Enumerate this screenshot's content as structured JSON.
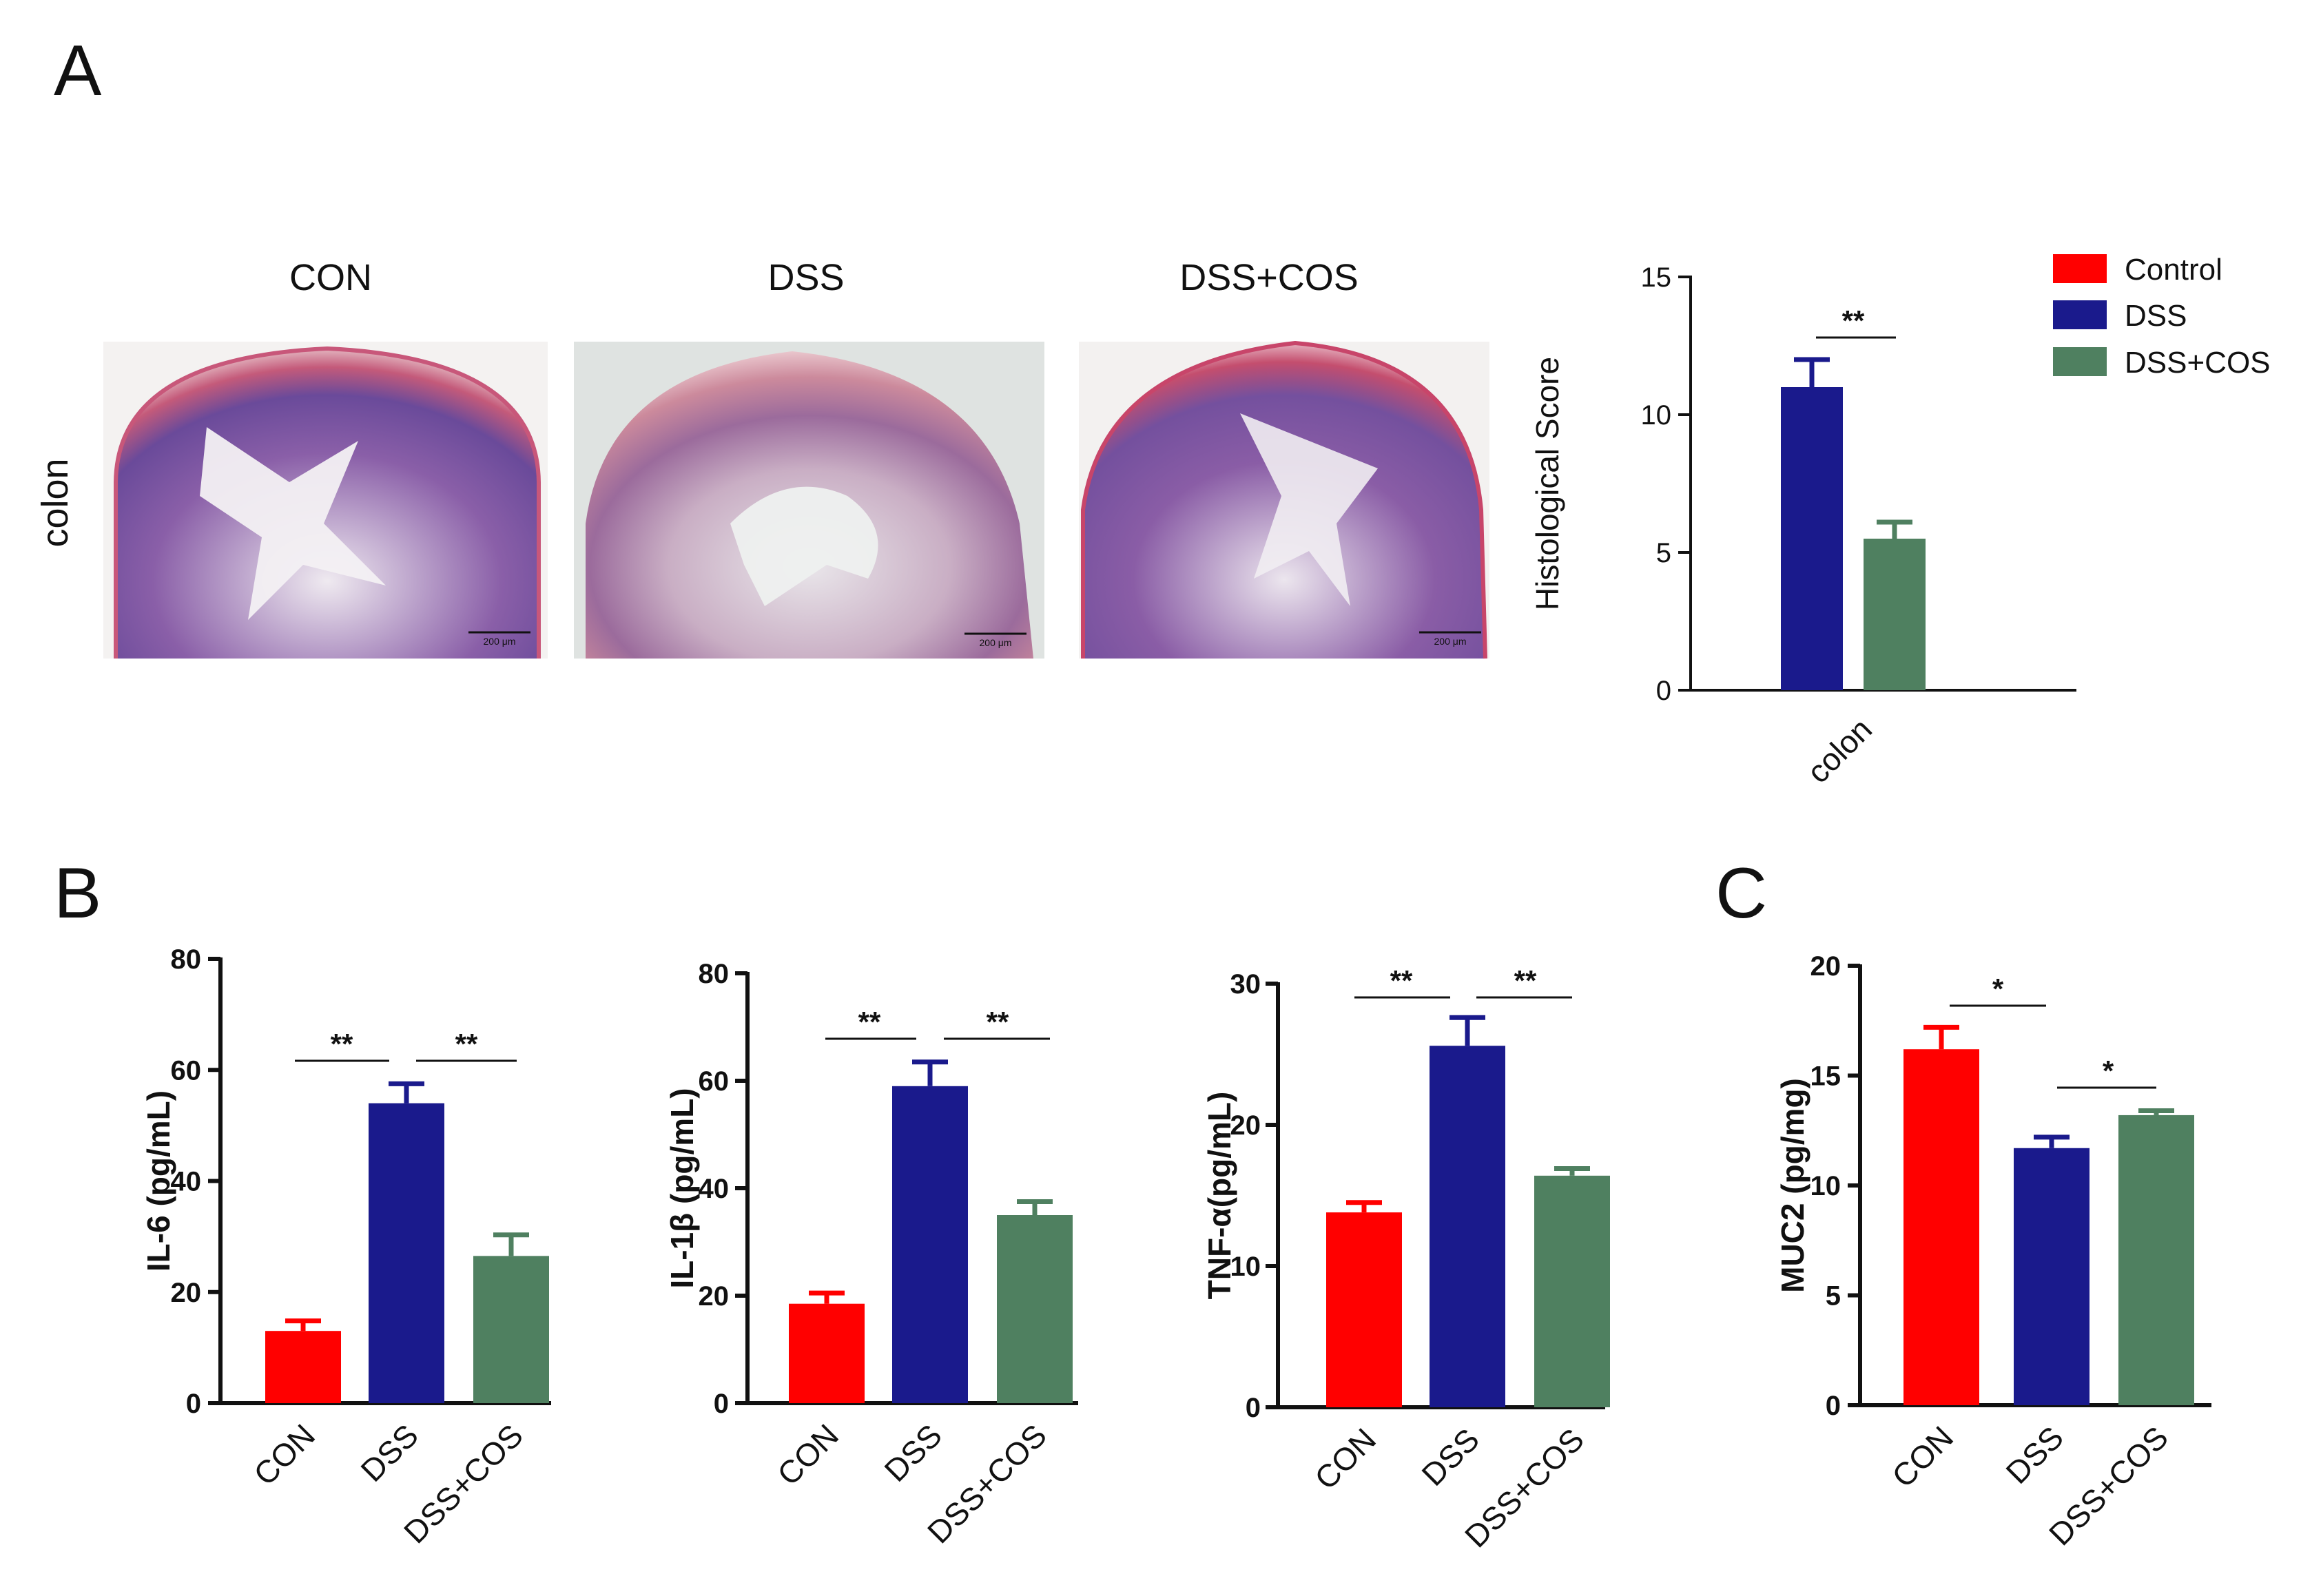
{
  "panels": {
    "A": "A",
    "B": "B",
    "C": "C"
  },
  "histology": {
    "row_label": "colon",
    "titles": [
      "CON",
      "DSS",
      "DSS+COS"
    ],
    "scale_bar": "200 μm"
  },
  "legend": [
    {
      "label": "Control",
      "color": "#ff0000"
    },
    {
      "label": "DSS",
      "color": "#1a1a8c"
    },
    {
      "label": "DSS+COS",
      "color": "#4f8060"
    }
  ],
  "colors": {
    "control": "#ff0000",
    "dss": "#1a1a8c",
    "dss_cos": "#4f8060",
    "axis": "#111111"
  },
  "chart_data": [
    {
      "id": "histo",
      "type": "bar",
      "panel": "A",
      "ylabel": "Histological Score",
      "ylim": [
        0,
        15
      ],
      "yticks": [
        0,
        5,
        10,
        15
      ],
      "categories": [
        "colon"
      ],
      "series": [
        {
          "name": "DSS",
          "values": [
            11.0
          ],
          "errors": [
            1.0
          ]
        },
        {
          "name": "DSS+COS",
          "values": [
            5.5
          ],
          "errors": [
            0.6
          ]
        }
      ],
      "significance": [
        {
          "between": [
            0,
            1
          ],
          "label": "**"
        }
      ]
    },
    {
      "id": "il6",
      "type": "bar",
      "panel": "B",
      "ylabel": "IL-6 (pg/mL)",
      "ylim": [
        0,
        80
      ],
      "yticks": [
        0,
        20,
        40,
        60,
        80
      ],
      "categories": [
        "CON",
        "DSS",
        "DSS+COS"
      ],
      "values": [
        13,
        54,
        26.5
      ],
      "errors": [
        1.8,
        3.5,
        3.8
      ],
      "significance": [
        {
          "between": [
            0,
            1
          ],
          "label": "**"
        },
        {
          "between": [
            1,
            2
          ],
          "label": "**"
        }
      ]
    },
    {
      "id": "il1b",
      "type": "bar",
      "panel": "B",
      "ylabel": "IL-1β (pg/mL)",
      "ylim": [
        0,
        80
      ],
      "yticks": [
        0,
        20,
        40,
        60,
        80
      ],
      "categories": [
        "CON",
        "DSS",
        "DSS+COS"
      ],
      "values": [
        18.5,
        59,
        35
      ],
      "errors": [
        2,
        4.5,
        2.5
      ],
      "significance": [
        {
          "between": [
            0,
            1
          ],
          "label": "**"
        },
        {
          "between": [
            1,
            2
          ],
          "label": "**"
        }
      ]
    },
    {
      "id": "tnf",
      "type": "bar",
      "panel": "B",
      "ylabel": "TNF-α(pg/mL)",
      "ylim": [
        0,
        30
      ],
      "yticks": [
        0,
        10,
        20,
        30
      ],
      "categories": [
        "CON",
        "DSS",
        "DSS+COS"
      ],
      "values": [
        13.8,
        25.6,
        16.4
      ],
      "errors": [
        0.7,
        2.0,
        0.5
      ],
      "significance": [
        {
          "between": [
            0,
            1
          ],
          "label": "**"
        },
        {
          "between": [
            1,
            2
          ],
          "label": "**"
        }
      ]
    },
    {
      "id": "muc2",
      "type": "bar",
      "panel": "C",
      "ylabel": "MUC2 (pg/mg)",
      "ylim": [
        0,
        20
      ],
      "yticks": [
        0,
        5,
        10,
        15,
        20
      ],
      "categories": [
        "CON",
        "DSS",
        "DSS+COS"
      ],
      "values": [
        16.2,
        11.7,
        13.2
      ],
      "errors": [
        1.0,
        0.5,
        0.2
      ],
      "significance": [
        {
          "between": [
            0,
            1
          ],
          "label": "*"
        },
        {
          "between": [
            1,
            2
          ],
          "label": "*"
        }
      ]
    }
  ]
}
